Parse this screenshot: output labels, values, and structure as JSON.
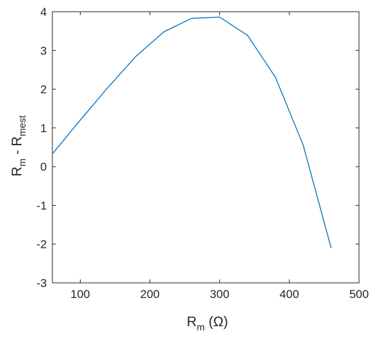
{
  "chart_data": {
    "type": "line",
    "title": "",
    "xlabel": {
      "main": "R",
      "sub": "m",
      "suffix": " (Ω)"
    },
    "ylabel": {
      "main1": "R",
      "sub1": "m",
      "mid": " - R",
      "sub2": "mest"
    },
    "xlim": [
      60,
      500
    ],
    "ylim": [
      -3,
      4
    ],
    "xticks": [
      100,
      200,
      300,
      400,
      500
    ],
    "yticks": [
      -3,
      -2,
      -1,
      0,
      1,
      2,
      3,
      4
    ],
    "grid": false,
    "line_color": "#0072BD",
    "series": [
      {
        "x": [
          60,
          100,
          140,
          180,
          220,
          260,
          300,
          340,
          380,
          420,
          460
        ],
        "y": [
          0.33,
          1.2,
          2.05,
          2.85,
          3.48,
          3.83,
          3.86,
          3.39,
          2.31,
          0.55,
          -2.1
        ]
      }
    ]
  }
}
